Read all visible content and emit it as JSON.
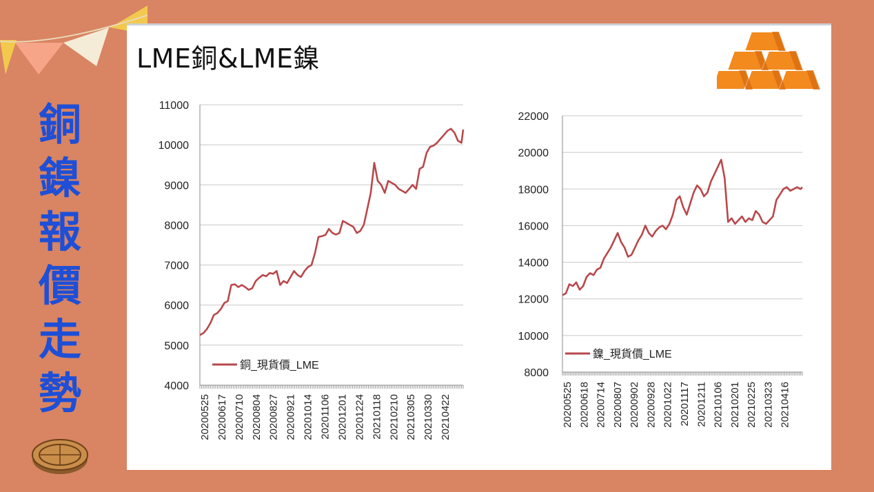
{
  "sidebar": {
    "title": "銅鎳報價走勢"
  },
  "slide": {
    "title": "LME銅&LME鎳"
  },
  "colors": {
    "background": "#d98462",
    "accent_blue": "#1e4fd6",
    "series_line": "#b8474a",
    "panel": "#ffffff"
  },
  "chart_data": [
    {
      "type": "line",
      "title": "",
      "xlabel": "",
      "ylabel": "",
      "ylim": [
        4000,
        11000
      ],
      "yticks": [
        4000,
        5000,
        6000,
        7000,
        8000,
        9000,
        10000,
        11000
      ],
      "xtick_labels": [
        "20200525",
        "20200617",
        "20200710",
        "20200804",
        "20200827",
        "20200921",
        "20201014",
        "20201106",
        "20201201",
        "20201224",
        "20210118",
        "20210210",
        "20210305",
        "20210330",
        "20210422"
      ],
      "grid": true,
      "legend": "bottom-left",
      "series": [
        {
          "name": "銅_現貨價_LME",
          "x": [
            0,
            2,
            4,
            6,
            8,
            10,
            12,
            14,
            16,
            18,
            20,
            22,
            24,
            26,
            28,
            30,
            32,
            34,
            36,
            38,
            40,
            42,
            44,
            46,
            48,
            50,
            52,
            54,
            56,
            58,
            60,
            62,
            64,
            66,
            68,
            70,
            72,
            74,
            76,
            78,
            80,
            82,
            84,
            86,
            88,
            90,
            92,
            94,
            96,
            98,
            100,
            102,
            104,
            106,
            108,
            110,
            112,
            114,
            116,
            118,
            120,
            122,
            124,
            126,
            128,
            130,
            132,
            134,
            136,
            138,
            140,
            142,
            144,
            146,
            148,
            150,
            151
          ],
          "y": [
            5250,
            5300,
            5400,
            5550,
            5750,
            5800,
            5900,
            6050,
            6100,
            6500,
            6520,
            6450,
            6500,
            6450,
            6380,
            6420,
            6600,
            6680,
            6750,
            6720,
            6800,
            6780,
            6850,
            6500,
            6600,
            6550,
            6700,
            6850,
            6750,
            6700,
            6850,
            6950,
            7000,
            7300,
            7700,
            7720,
            7750,
            7900,
            7800,
            7760,
            7800,
            8100,
            8050,
            8000,
            7950,
            7800,
            7850,
            8000,
            8400,
            8800,
            9550,
            9100,
            9000,
            8800,
            9100,
            9050,
            9000,
            8900,
            8850,
            8800,
            8900,
            9000,
            8900,
            9400,
            9450,
            9800,
            9950,
            9980,
            10050,
            10150,
            10250,
            10350,
            10400,
            10300,
            10100,
            10050,
            10380
          ]
        }
      ]
    },
    {
      "type": "line",
      "title": "",
      "xlabel": "",
      "ylabel": "",
      "ylim": [
        8000,
        22000
      ],
      "yticks": [
        8000,
        10000,
        12000,
        14000,
        16000,
        18000,
        20000,
        22000
      ],
      "xtick_labels": [
        "20200525",
        "20200618",
        "20200714",
        "20200807",
        "20200902",
        "20200928",
        "20201022",
        "20201117",
        "20201211",
        "20210106",
        "20210201",
        "20210225",
        "20210323",
        "20210416"
      ],
      "grid": true,
      "legend": "bottom-left",
      "series": [
        {
          "name": "鎳_現貨價_LME",
          "x": [
            0,
            2,
            4,
            6,
            8,
            10,
            12,
            14,
            16,
            18,
            20,
            22,
            24,
            26,
            28,
            30,
            32,
            34,
            36,
            38,
            40,
            42,
            44,
            46,
            48,
            50,
            52,
            54,
            56,
            58,
            60,
            62,
            64,
            66,
            68,
            70,
            72,
            74,
            76,
            78,
            80,
            82,
            84,
            86,
            88,
            90,
            92,
            94,
            96,
            98,
            100,
            102,
            104,
            106,
            108,
            110,
            112,
            114,
            116,
            118,
            120,
            122,
            124,
            126,
            128,
            130,
            132,
            134,
            136,
            138,
            139
          ],
          "y": [
            12200,
            12300,
            12800,
            12700,
            12900,
            12500,
            12700,
            13200,
            13400,
            13300,
            13600,
            13700,
            14200,
            14500,
            14800,
            15200,
            15600,
            15100,
            14800,
            14300,
            14400,
            14800,
            15200,
            15500,
            16000,
            15600,
            15400,
            15700,
            15900,
            16000,
            15800,
            16100,
            16600,
            17400,
            17600,
            17000,
            16600,
            17200,
            17800,
            18200,
            18000,
            17600,
            17800,
            18400,
            18800,
            19200,
            19600,
            18600,
            16200,
            16400,
            16100,
            16300,
            16500,
            16200,
            16400,
            16300,
            16800,
            16600,
            16200,
            16100,
            16300,
            16500,
            17400,
            17700,
            18000,
            18100,
            17900,
            18000,
            18100,
            18000,
            18100
          ]
        }
      ]
    }
  ]
}
